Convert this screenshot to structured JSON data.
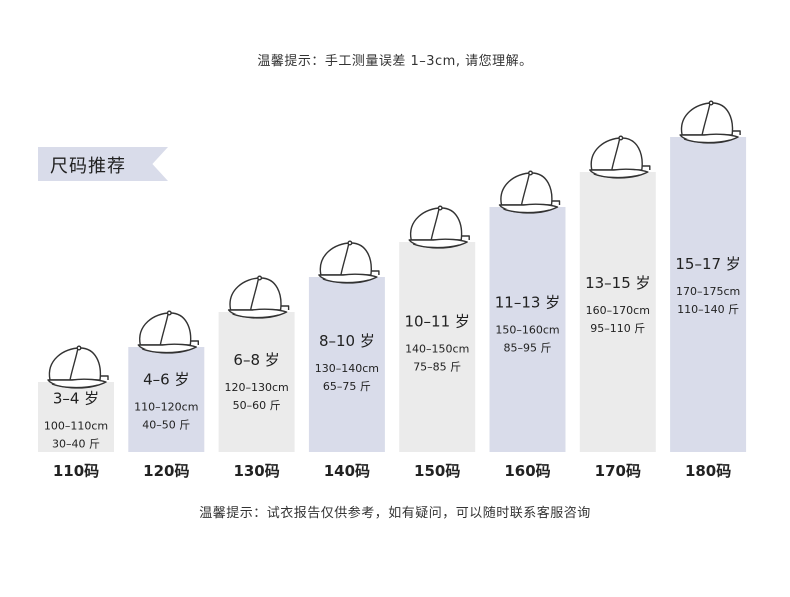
{
  "notes": {
    "top": "温馨提示：手工测量误差 1–3cm, 请您理解。",
    "bottom": "温馨提示：试衣报告仅供参考，如有疑问，可以随时联系客服咨询"
  },
  "banner_label": "尺码推荐",
  "colors": {
    "bar_light": "#ebebeb",
    "bar_blue": "#d9dcea",
    "text": "#222222"
  },
  "icon": "baseball-cap-icon",
  "chart_data": {
    "type": "bar",
    "title": "",
    "xlabel": "",
    "ylabel": "",
    "categories": [
      "110码",
      "120码",
      "130码",
      "140码",
      "150码",
      "160码",
      "170码",
      "180码"
    ],
    "values": [
      110,
      120,
      130,
      140,
      150,
      160,
      170,
      180
    ],
    "ylim": [
      90,
      190
    ],
    "age": [
      "3–4 岁",
      "4–6 岁",
      "6–8 岁",
      "8–10 岁",
      "10–11 岁",
      "11–13 岁",
      "13–15 岁",
      "15–17 岁"
    ],
    "height": [
      "100–110cm",
      "110–120cm",
      "120–130cm",
      "130–140cm",
      "140–150cm",
      "150–160cm",
      "160–170cm",
      "170–175cm"
    ],
    "weight": [
      "30–40 斤",
      "40–50 斤",
      "50–60 斤",
      "65–75 斤",
      "75–85 斤",
      "85–95 斤",
      "95–110 斤",
      "110–140 斤"
    ],
    "bar_color_pattern": [
      "light",
      "blue",
      "light",
      "blue",
      "light",
      "blue",
      "light",
      "blue"
    ]
  }
}
